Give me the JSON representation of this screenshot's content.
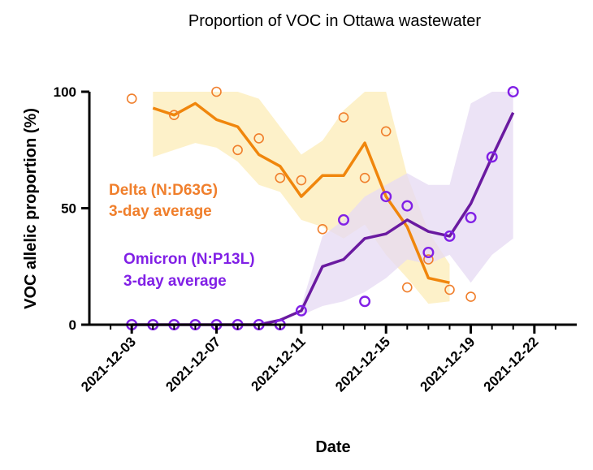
{
  "chart_data": {
    "type": "line",
    "title": "Proportion of VOC in Ottawa wastewater",
    "xlabel": "Date",
    "ylabel": "VOC allelic proportion (%)",
    "xlim": [
      "2021-12-01",
      "2021-12-24"
    ],
    "ylim": [
      0,
      100
    ],
    "x_ticks": [
      "2021-12-03",
      "2021-12-07",
      "2021-12-11",
      "2021-12-15",
      "2021-12-19",
      "2021-12-22"
    ],
    "y_ticks": [
      0,
      50,
      100
    ],
    "legend_placement": "inline",
    "series": [
      {
        "name": "Delta (N:D63G)",
        "name_line2": "3-day average",
        "color": "#f07f2c",
        "band_color": "#fdeec0",
        "points": [
          {
            "x": "2021-12-03",
            "y": 97
          },
          {
            "x": "2021-12-05",
            "y": 90
          },
          {
            "x": "2021-12-07",
            "y": 100
          },
          {
            "x": "2021-12-08",
            "y": 75
          },
          {
            "x": "2021-12-09",
            "y": 80
          },
          {
            "x": "2021-12-10",
            "y": 63
          },
          {
            "x": "2021-12-11",
            "y": 62
          },
          {
            "x": "2021-12-12",
            "y": 41
          },
          {
            "x": "2021-12-13",
            "y": 89
          },
          {
            "x": "2021-12-14",
            "y": 63
          },
          {
            "x": "2021-12-15",
            "y": 83
          },
          {
            "x": "2021-12-16",
            "y": 16
          },
          {
            "x": "2021-12-17",
            "y": 28
          },
          {
            "x": "2021-12-18",
            "y": 15
          },
          {
            "x": "2021-12-19",
            "y": 12
          }
        ],
        "average": [
          {
            "x": "2021-12-04",
            "y": 93
          },
          {
            "x": "2021-12-05",
            "y": 90
          },
          {
            "x": "2021-12-06",
            "y": 95
          },
          {
            "x": "2021-12-07",
            "y": 88
          },
          {
            "x": "2021-12-08",
            "y": 85
          },
          {
            "x": "2021-12-09",
            "y": 73
          },
          {
            "x": "2021-12-10",
            "y": 68
          },
          {
            "x": "2021-12-11",
            "y": 55
          },
          {
            "x": "2021-12-12",
            "y": 64
          },
          {
            "x": "2021-12-13",
            "y": 64
          },
          {
            "x": "2021-12-14",
            "y": 78
          },
          {
            "x": "2021-12-15",
            "y": 55
          },
          {
            "x": "2021-12-16",
            "y": 42
          },
          {
            "x": "2021-12-17",
            "y": 20
          },
          {
            "x": "2021-12-18",
            "y": 18
          }
        ],
        "band": [
          {
            "x": "2021-12-04",
            "lo": 72,
            "hi": 100
          },
          {
            "x": "2021-12-05",
            "lo": 75,
            "hi": 100
          },
          {
            "x": "2021-12-06",
            "lo": 78,
            "hi": 100
          },
          {
            "x": "2021-12-07",
            "lo": 76,
            "hi": 100
          },
          {
            "x": "2021-12-08",
            "lo": 70,
            "hi": 100
          },
          {
            "x": "2021-12-09",
            "lo": 60,
            "hi": 97
          },
          {
            "x": "2021-12-10",
            "lo": 57,
            "hi": 85
          },
          {
            "x": "2021-12-11",
            "lo": 45,
            "hi": 73
          },
          {
            "x": "2021-12-12",
            "lo": 42,
            "hi": 79
          },
          {
            "x": "2021-12-13",
            "lo": 37,
            "hi": 92
          },
          {
            "x": "2021-12-14",
            "lo": 43,
            "hi": 100
          },
          {
            "x": "2021-12-15",
            "lo": 30,
            "hi": 100
          },
          {
            "x": "2021-12-16",
            "lo": 20,
            "hi": 64
          },
          {
            "x": "2021-12-17",
            "lo": 9,
            "hi": 40
          },
          {
            "x": "2021-12-18",
            "lo": 10,
            "hi": 26
          }
        ]
      },
      {
        "name": "Omicron (N:P13L)",
        "name_line2": "3-day average",
        "color": "#8120e6",
        "band_color": "#e6d9f3",
        "points": [
          {
            "x": "2021-12-03",
            "y": 0
          },
          {
            "x": "2021-12-04",
            "y": 0
          },
          {
            "x": "2021-12-05",
            "y": 0
          },
          {
            "x": "2021-12-06",
            "y": 0
          },
          {
            "x": "2021-12-07",
            "y": 0
          },
          {
            "x": "2021-12-08",
            "y": 0
          },
          {
            "x": "2021-12-09",
            "y": 0
          },
          {
            "x": "2021-12-10",
            "y": 0
          },
          {
            "x": "2021-12-11",
            "y": 6
          },
          {
            "x": "2021-12-13",
            "y": 45
          },
          {
            "x": "2021-12-14",
            "y": 10
          },
          {
            "x": "2021-12-15",
            "y": 55
          },
          {
            "x": "2021-12-16",
            "y": 51
          },
          {
            "x": "2021-12-17",
            "y": 31
          },
          {
            "x": "2021-12-18",
            "y": 38
          },
          {
            "x": "2021-12-19",
            "y": 46
          },
          {
            "x": "2021-12-20",
            "y": 72
          },
          {
            "x": "2021-12-21",
            "y": 100
          }
        ],
        "average": [
          {
            "x": "2021-12-03",
            "y": 0
          },
          {
            "x": "2021-12-04",
            "y": 0
          },
          {
            "x": "2021-12-05",
            "y": 0
          },
          {
            "x": "2021-12-06",
            "y": 0
          },
          {
            "x": "2021-12-07",
            "y": 0
          },
          {
            "x": "2021-12-08",
            "y": 0
          },
          {
            "x": "2021-12-09",
            "y": 0
          },
          {
            "x": "2021-12-10",
            "y": 2
          },
          {
            "x": "2021-12-11",
            "y": 6
          },
          {
            "x": "2021-12-12",
            "y": 25
          },
          {
            "x": "2021-12-13",
            "y": 28
          },
          {
            "x": "2021-12-14",
            "y": 37
          },
          {
            "x": "2021-12-15",
            "y": 39
          },
          {
            "x": "2021-12-16",
            "y": 45
          },
          {
            "x": "2021-12-17",
            "y": 40
          },
          {
            "x": "2021-12-18",
            "y": 38
          },
          {
            "x": "2021-12-19",
            "y": 52
          },
          {
            "x": "2021-12-20",
            "y": 72
          },
          {
            "x": "2021-12-21",
            "y": 91
          }
        ],
        "band": [
          {
            "x": "2021-12-11",
            "lo": 4,
            "hi": 8
          },
          {
            "x": "2021-12-12",
            "lo": 8,
            "hi": 38
          },
          {
            "x": "2021-12-13",
            "lo": 10,
            "hi": 45
          },
          {
            "x": "2021-12-14",
            "lo": 14,
            "hi": 55
          },
          {
            "x": "2021-12-15",
            "lo": 20,
            "hi": 60
          },
          {
            "x": "2021-12-16",
            "lo": 28,
            "hi": 65
          },
          {
            "x": "2021-12-17",
            "lo": 26,
            "hi": 60
          },
          {
            "x": "2021-12-18",
            "lo": 30,
            "hi": 60
          },
          {
            "x": "2021-12-19",
            "lo": 18,
            "hi": 95
          },
          {
            "x": "2021-12-20",
            "lo": 30,
            "hi": 100
          },
          {
            "x": "2021-12-21",
            "lo": 37,
            "hi": 100
          }
        ]
      }
    ]
  }
}
